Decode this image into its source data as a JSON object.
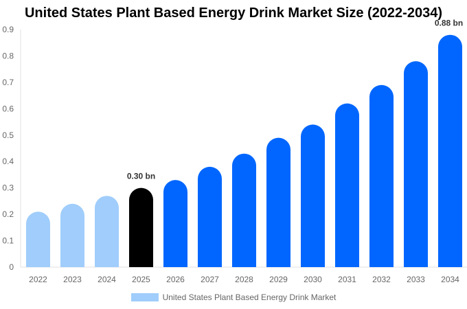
{
  "chart_data": {
    "type": "bar",
    "title": "United States Plant Based Energy Drink Market Size (2022-2034)",
    "categories": [
      "2022",
      "2023",
      "2024",
      "2025",
      "2026",
      "2027",
      "2028",
      "2029",
      "2030",
      "2031",
      "2032",
      "2033",
      "2034"
    ],
    "series": [
      {
        "name": "United States Plant Based Energy Drink Market",
        "values": [
          0.21,
          0.24,
          0.27,
          0.3,
          0.33,
          0.38,
          0.43,
          0.49,
          0.54,
          0.62,
          0.69,
          0.78,
          0.88
        ]
      }
    ],
    "yticks": [
      "0",
      "0.1",
      "0.2",
      "0.3",
      "0.4",
      "0.5",
      "0.6",
      "0.7",
      "0.8",
      "0.9"
    ],
    "ylim": [
      0,
      0.9
    ],
    "data_labels": [
      {
        "category": "2025",
        "text": "0.30 bn"
      },
      {
        "category": "2034",
        "text": "0.88 bn"
      }
    ],
    "legend_position": "bottom",
    "grid": false,
    "colors": {
      "historical": "#a0cdfb",
      "current": "#000000",
      "forecast": "#0066ff"
    }
  }
}
